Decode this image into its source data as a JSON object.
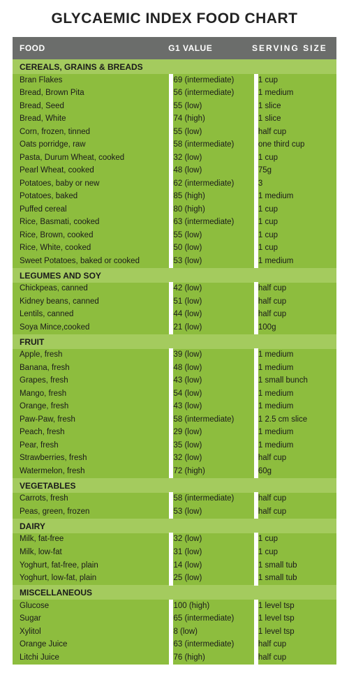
{
  "title": "GLYCAEMIC INDEX FOOD CHART",
  "title_fontsize": 21,
  "colors": {
    "header_bg": "#6b6d6b",
    "header_fg": "#ffffff",
    "section_bg": "#a4cb5e",
    "row_bg": "#8dbd3e",
    "row_fg": "#1a1a1a",
    "gap": "#ffffff"
  },
  "columns": {
    "food": "FOOD",
    "gi": "G1 VALUE",
    "serving": "SERVING  SIZE"
  },
  "sections": [
    {
      "name": "CEREALS, GRAINS & BREADS",
      "rows": [
        {
          "food": "Bran Flakes",
          "gi": "69 (intermediate)",
          "serving": "1 cup"
        },
        {
          "food": "Bread, Brown Pita",
          "gi": "56 (intermediate)",
          "serving": "1 medium"
        },
        {
          "food": "Bread, Seed",
          "gi": "55 (low)",
          "serving": "1 slice"
        },
        {
          "food": "Bread, White",
          "gi": "74 (high)",
          "serving": "1 slice"
        },
        {
          "food": "Corn, frozen, tinned",
          "gi": "55 (low)",
          "serving": "half cup"
        },
        {
          "food": "Oats porridge, raw",
          "gi": "58 (intermediate)",
          "serving": "one third cup"
        },
        {
          "food": "Pasta, Durum Wheat, cooked",
          "gi": "32 (low)",
          "serving": "1 cup"
        },
        {
          "food": "Pearl Wheat, cooked",
          "gi": "48 (low)",
          "serving": "75g"
        },
        {
          "food": "Potatoes, baby or new",
          "gi": "62 (intermediate)",
          "serving": "3"
        },
        {
          "food": "Potatoes, baked",
          "gi": "85 (high)",
          "serving": "1 medium"
        },
        {
          "food": "Puffed cereal",
          "gi": "80 (high)",
          "serving": "1 cup"
        },
        {
          "food": "Rice, Basmati, cooked",
          "gi": "63 (intermediate)",
          "serving": "1 cup"
        },
        {
          "food": "Rice, Brown, cooked",
          "gi": "55 (low)",
          "serving": "1 cup"
        },
        {
          "food": "Rice, White, cooked",
          "gi": "50 (low)",
          "serving": "1 cup"
        },
        {
          "food": "Sweet Potatoes, baked or cooked",
          "gi": "53 (low)",
          "serving": "1 medium"
        }
      ]
    },
    {
      "name": "LEGUMES AND SOY",
      "rows": [
        {
          "food": "Chickpeas, canned",
          "gi": "42 (low)",
          "serving": "half cup"
        },
        {
          "food": "Kidney beans, canned",
          "gi": "51 (low)",
          "serving": "half cup"
        },
        {
          "food": "Lentils, canned",
          "gi": "44 (low)",
          "serving": "half cup"
        },
        {
          "food": "Soya Mince,cooked",
          "gi": "21 (low)",
          "serving": "100g"
        }
      ]
    },
    {
      "name": "FRUIT",
      "rows": [
        {
          "food": "Apple, fresh",
          "gi": "39 (low)",
          "serving": "1 medium"
        },
        {
          "food": "Banana, fresh",
          "gi": "48 (low)",
          "serving": "1 medium"
        },
        {
          "food": "Grapes, fresh",
          "gi": "43 (low)",
          "serving": "1 small bunch"
        },
        {
          "food": "Mango, fresh",
          "gi": "54 (low)",
          "serving": "1 medium"
        },
        {
          "food": "Orange, fresh",
          "gi": "43 (low)",
          "serving": "1 medium"
        },
        {
          "food": "Paw-Paw, fresh",
          "gi": "58 (intermediate)",
          "serving": "1 2.5 cm slice"
        },
        {
          "food": "Peach, fresh",
          "gi": "29 (low)",
          "serving": "1 medium"
        },
        {
          "food": "Pear, fresh",
          "gi": "35 (low)",
          "serving": "1 medium"
        },
        {
          "food": "Strawberries, fresh",
          "gi": "32 (low)",
          "serving": "half cup"
        },
        {
          "food": "Watermelon, fresh",
          "gi": "72 (high)",
          "serving": "60g"
        }
      ]
    },
    {
      "name": "VEGETABLES",
      "rows": [
        {
          "food": "Carrots, fresh",
          "gi": "58 (intermediate)",
          "serving": "half cup"
        },
        {
          "food": "Peas, green, frozen",
          "gi": "53 (low)",
          "serving": "half cup"
        }
      ]
    },
    {
      "name": "DAIRY",
      "rows": [
        {
          "food": "Milk, fat-free",
          "gi": "32 (low)",
          "serving": "1 cup"
        },
        {
          "food": "Milk, low-fat",
          "gi": "31 (low)",
          "serving": "1 cup"
        },
        {
          "food": "Yoghurt, fat-free, plain",
          "gi": "14 (low)",
          "serving": "1 small tub"
        },
        {
          "food": "Yoghurt, low-fat, plain",
          "gi": "25 (low)",
          "serving": "1 small tub"
        }
      ]
    },
    {
      "name": "MISCELLANEOUS",
      "rows": [
        {
          "food": "Glucose",
          "gi": "100 (high)",
          "serving": "1 level tsp"
        },
        {
          "food": "Sugar",
          "gi": "65 (intermediate)",
          "serving": "1 level tsp"
        },
        {
          "food": "Xylitol",
          "gi": "8 (low)",
          "serving": "1 level tsp"
        },
        {
          "food": "Orange Juice",
          "gi": "63 (intermediate)",
          "serving": "half cup"
        },
        {
          "food": "Litchi Juice",
          "gi": "76 (high)",
          "serving": "half cup"
        }
      ]
    }
  ]
}
